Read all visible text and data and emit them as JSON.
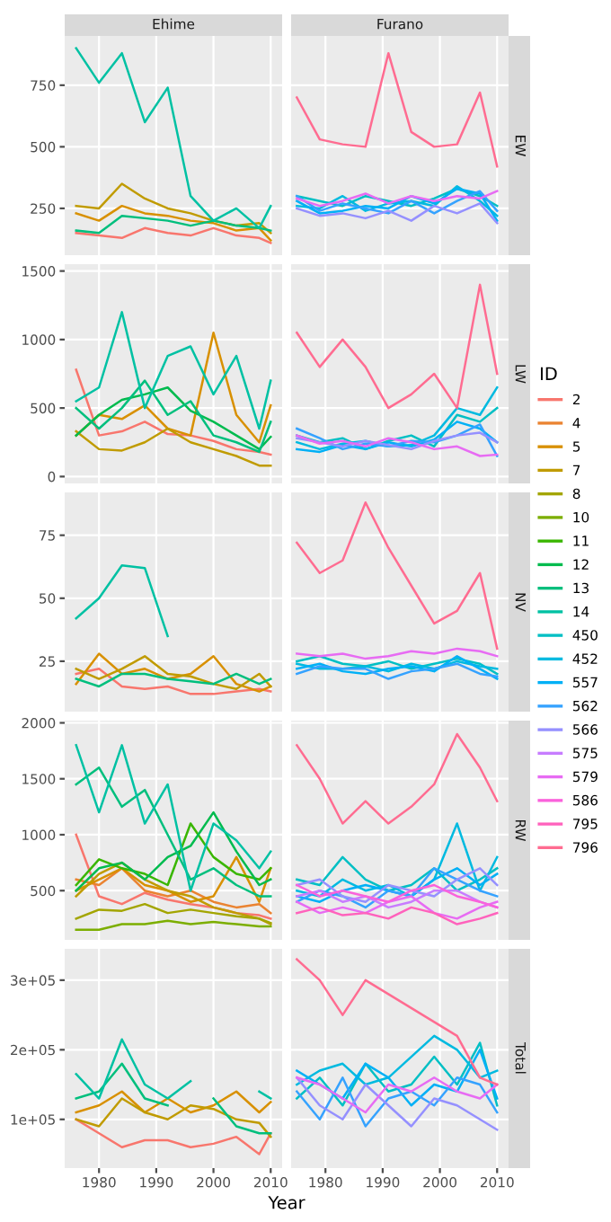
{
  "chart_data": [
    {
      "type": "line",
      "title": "Ehime",
      "x": [
        1976,
        1980,
        1984,
        1988,
        1992,
        1996,
        2000,
        2004,
        2008,
        2010
      ],
      "xlim": [
        1974,
        2012
      ],
      "xticks": [
        1980,
        1990,
        2000,
        2010
      ],
      "ylim": [
        60,
        950
      ],
      "yticks": [
        250,
        500,
        750
      ],
      "tick_labels": "y",
      "grid": true,
      "legend": "right",
      "legend_title": "ID",
      "series": [
        {
          "name": "2",
          "color": "#F8766D",
          "values": [
            150,
            140,
            130,
            170,
            150,
            140,
            170,
            140,
            130,
            110
          ]
        },
        {
          "name": "5",
          "color": "#D89000",
          "values": [
            230,
            200,
            260,
            230,
            220,
            200,
            190,
            160,
            170,
            120
          ]
        },
        {
          "name": "7",
          "color": "#C09B00",
          "values": [
            260,
            250,
            350,
            290,
            250,
            230,
            200,
            180,
            190,
            150
          ]
        },
        {
          "name": "13",
          "color": "#00BF7D",
          "values": [
            160,
            150,
            220,
            210,
            200,
            180,
            200,
            180,
            170,
            160
          ]
        },
        {
          "name": "14",
          "color": "#00C1A3",
          "values": [
            900,
            760,
            880,
            600,
            740,
            300,
            200,
            250,
            170,
            260
          ]
        }
      ]
    },
    {
      "type": "line",
      "title": "Furano",
      "annotations": [
        "EW"
      ],
      "legend": "right",
      "x": [
        1975,
        1979,
        1983,
        1987,
        1991,
        1995,
        1999,
        2003,
        2007,
        2010
      ],
      "xlim": [
        1974,
        2012
      ],
      "xticks": [
        1980,
        1990,
        2000,
        2010
      ],
      "ylim": [
        60,
        950
      ],
      "yticks": [
        250,
        500,
        750
      ],
      "tick_labels": false,
      "grid": true,
      "series": [
        {
          "name": "450",
          "color": "#00BFC4",
          "values": [
            300,
            280,
            260,
            300,
            280,
            260,
            290,
            330,
            300,
            260
          ]
        },
        {
          "name": "452",
          "color": "#00BAE0",
          "values": [
            260,
            250,
            300,
            240,
            270,
            280,
            260,
            340,
            280,
            220
          ]
        },
        {
          "name": "557",
          "color": "#00B0F6",
          "values": [
            280,
            230,
            240,
            260,
            250,
            300,
            270,
            330,
            310,
            200
          ]
        },
        {
          "name": "562",
          "color": "#35A2FF",
          "values": [
            300,
            240,
            270,
            250,
            230,
            280,
            230,
            280,
            320,
            240
          ]
        },
        {
          "name": "566",
          "color": "#9590FF",
          "values": [
            250,
            220,
            230,
            210,
            240,
            200,
            260,
            230,
            270,
            190
          ]
        },
        {
          "name": "579",
          "color": "#E76BF3",
          "values": [
            290,
            260,
            280,
            310,
            270,
            300,
            280,
            300,
            290,
            320
          ]
        },
        {
          "name": "796",
          "color": "#FF6C91",
          "values": [
            700,
            530,
            510,
            500,
            880,
            560,
            500,
            510,
            720,
            420
          ]
        }
      ]
    },
    {
      "type": "line",
      "x": [
        1976,
        1980,
        1984,
        1988,
        1992,
        1996,
        2000,
        2004,
        2008,
        2010
      ],
      "xlim": [
        1974,
        2012
      ],
      "xticks": [
        1980,
        1990,
        2000,
        2010
      ],
      "ylim": [
        -50,
        1550
      ],
      "yticks": [
        0,
        500,
        1000,
        1500
      ],
      "tick_labels": "y",
      "grid": true,
      "series": [
        {
          "name": "2",
          "color": "#F8766D",
          "values": [
            780,
            300,
            330,
            400,
            310,
            300,
            260,
            200,
            180,
            160
          ]
        },
        {
          "name": "5",
          "color": "#D89000",
          "values": [
            300,
            450,
            420,
            520,
            350,
            300,
            1050,
            450,
            250,
            520
          ]
        },
        {
          "name": "7",
          "color": "#C09B00",
          "values": [
            330,
            200,
            190,
            250,
            350,
            250,
            200,
            150,
            80,
            80
          ]
        },
        {
          "name": "12",
          "color": "#00BB4E",
          "values": [
            300,
            450,
            560,
            600,
            650,
            480,
            400,
            300,
            200,
            290
          ]
        },
        {
          "name": "13",
          "color": "#00BF7D",
          "values": [
            500,
            350,
            500,
            700,
            450,
            550,
            300,
            250,
            180,
            400
          ]
        },
        {
          "name": "14",
          "color": "#00C1A3",
          "values": [
            550,
            650,
            1200,
            500,
            880,
            950,
            600,
            880,
            350,
            700
          ]
        }
      ]
    },
    {
      "type": "line",
      "annotations": [
        "LW"
      ],
      "x": [
        1975,
        1979,
        1983,
        1987,
        1991,
        1995,
        1999,
        2003,
        2007,
        2010
      ],
      "xlim": [
        1974,
        2012
      ],
      "xticks": [
        1980,
        1990,
        2000,
        2010
      ],
      "ylim": [
        -50,
        1550
      ],
      "yticks": [
        0,
        500,
        1000,
        1500
      ],
      "tick_labels": false,
      "grid": true,
      "series": [
        {
          "name": "450",
          "color": "#00BFC4",
          "values": [
            300,
            250,
            280,
            200,
            260,
            300,
            220,
            450,
            400,
            500
          ]
        },
        {
          "name": "452",
          "color": "#00BAE0",
          "values": [
            250,
            200,
            240,
            260,
            220,
            230,
            300,
            500,
            450,
            650
          ]
        },
        {
          "name": "557",
          "color": "#00B0F6",
          "values": [
            200,
            180,
            230,
            200,
            250,
            220,
            270,
            400,
            350,
            250
          ]
        },
        {
          "name": "562",
          "color": "#35A2FF",
          "values": [
            350,
            280,
            200,
            240,
            220,
            260,
            250,
            300,
            380,
            150
          ]
        },
        {
          "name": "566",
          "color": "#9590FF",
          "values": [
            280,
            250,
            220,
            260,
            230,
            200,
            260,
            300,
            320,
            250
          ]
        },
        {
          "name": "579",
          "color": "#E76BF3",
          "values": [
            300,
            240,
            260,
            220,
            280,
            250,
            200,
            220,
            150,
            160
          ]
        },
        {
          "name": "796",
          "color": "#FF6C91",
          "values": [
            1050,
            800,
            1000,
            800,
            500,
            600,
            750,
            500,
            1400,
            750
          ]
        }
      ]
    },
    {
      "type": "line",
      "x": [
        1976,
        1980,
        1984,
        1988,
        1992,
        1996,
        2000,
        2004,
        2008,
        2010
      ],
      "xlim": [
        1974,
        2012
      ],
      "xticks": [
        1980,
        1990,
        2000,
        2010
      ],
      "ylim": [
        5,
        92
      ],
      "yticks": [
        25,
        50,
        75
      ],
      "tick_labels": "y",
      "grid": true,
      "series": [
        {
          "name": "2",
          "color": "#F8766D",
          "values": [
            20,
            22,
            15,
            14,
            15,
            12,
            12,
            13,
            14,
            13
          ]
        },
        {
          "name": "5",
          "color": "#D89000",
          "values": [
            16,
            28,
            20,
            22,
            18,
            20,
            27,
            16,
            13,
            15
          ]
        },
        {
          "name": "7",
          "color": "#C09B00",
          "values": [
            22,
            18,
            22,
            27,
            20,
            19,
            16,
            14,
            20,
            15
          ]
        },
        {
          "name": "13",
          "color": "#00BF7D",
          "values": [
            18,
            15,
            20,
            20,
            18,
            17,
            16,
            20,
            16,
            18
          ]
        },
        {
          "name": "14",
          "color": "#00C1A3",
          "values": [
            42,
            50,
            63,
            62,
            35,
            null,
            null,
            null,
            null,
            null
          ]
        }
      ]
    },
    {
      "type": "line",
      "annotations": [
        "NV"
      ],
      "x": [
        1975,
        1979,
        1983,
        1987,
        1991,
        1995,
        1999,
        2003,
        2007,
        2010
      ],
      "xlim": [
        1974,
        2012
      ],
      "xticks": [
        1980,
        1990,
        2000,
        2010
      ],
      "ylim": [
        5,
        92
      ],
      "yticks": [
        25,
        50,
        75
      ],
      "tick_labels": false,
      "grid": true,
      "series": [
        {
          "name": "450",
          "color": "#00BFC4",
          "values": [
            25,
            27,
            24,
            23,
            25,
            22,
            24,
            26,
            24,
            20
          ]
        },
        {
          "name": "452",
          "color": "#00BAE0",
          "values": [
            24,
            22,
            22,
            23,
            21,
            24,
            22,
            25,
            23,
            22
          ]
        },
        {
          "name": "557",
          "color": "#00B0F6",
          "values": [
            22,
            24,
            21,
            20,
            22,
            23,
            21,
            27,
            22,
            18
          ]
        },
        {
          "name": "562",
          "color": "#35A2FF",
          "values": [
            20,
            23,
            22,
            22,
            18,
            21,
            22,
            24,
            20,
            19
          ]
        },
        {
          "name": "579",
          "color": "#E76BF3",
          "values": [
            28,
            27,
            28,
            26,
            27,
            29,
            28,
            30,
            29,
            27
          ]
        },
        {
          "name": "796",
          "color": "#FF6C91",
          "values": [
            72,
            60,
            65,
            88,
            70,
            55,
            40,
            45,
            60,
            30
          ]
        }
      ]
    },
    {
      "type": "line",
      "legend": "right",
      "x": [
        1976,
        1980,
        1984,
        1988,
        1992,
        1996,
        2000,
        2004,
        2008,
        2010
      ],
      "xlim": [
        1974,
        2012
      ],
      "xticks": [
        1980,
        1990,
        2000,
        2010
      ],
      "ylim": [
        60,
        2020
      ],
      "yticks": [
        500,
        1000,
        1500,
        2000
      ],
      "tick_labels": "y",
      "grid": true,
      "series": [
        {
          "name": "2",
          "color": "#F8766D",
          "values": [
            1000,
            450,
            380,
            480,
            420,
            380,
            350,
            300,
            280,
            250
          ]
        },
        {
          "name": "4",
          "color": "#EA8331",
          "values": [
            600,
            550,
            700,
            500,
            450,
            500,
            400,
            350,
            380,
            300
          ]
        },
        {
          "name": "5",
          "color": "#D89000",
          "values": [
            500,
            600,
            700,
            550,
            500,
            400,
            450,
            800,
            400,
            700
          ]
        },
        {
          "name": "7",
          "color": "#C09B00",
          "values": [
            450,
            650,
            750,
            600,
            500,
            450,
            350,
            300,
            250,
            200
          ]
        },
        {
          "name": "8",
          "color": "#A3A500",
          "values": [
            250,
            330,
            320,
            380,
            300,
            330,
            300,
            270,
            250,
            210
          ]
        },
        {
          "name": "10",
          "color": "#7CAE00",
          "values": [
            150,
            150,
            200,
            200,
            230,
            200,
            220,
            200,
            180,
            180
          ]
        },
        {
          "name": "11",
          "color": "#39B600",
          "values": [
            550,
            780,
            700,
            650,
            550,
            1100,
            800,
            650,
            600,
            700
          ]
        },
        {
          "name": "12",
          "color": "#00BB4E",
          "values": [
            500,
            700,
            750,
            600,
            800,
            900,
            1200,
            850,
            550,
            600
          ]
        },
        {
          "name": "13",
          "color": "#00BF7D",
          "values": [
            1450,
            1600,
            1250,
            1400,
            1000,
            600,
            700,
            550,
            450,
            450
          ]
        },
        {
          "name": "14",
          "color": "#00C1A3",
          "values": [
            1800,
            1200,
            1800,
            1100,
            1450,
            500,
            1100,
            950,
            700,
            850
          ]
        }
      ]
    },
    {
      "type": "line",
      "annotations": [
        "RW"
      ],
      "legend": "right",
      "x": [
        1975,
        1979,
        1983,
        1987,
        1991,
        1995,
        1999,
        2003,
        2007,
        2010
      ],
      "xlim": [
        1974,
        2012
      ],
      "xticks": [
        1980,
        1990,
        2000,
        2010
      ],
      "ylim": [
        60,
        2020
      ],
      "yticks": [
        500,
        1000,
        1500,
        2000
      ],
      "tick_labels": false,
      "grid": true,
      "series": [
        {
          "name": "450",
          "color": "#00BFC4",
          "values": [
            600,
            550,
            800,
            600,
            500,
            550,
            700,
            500,
            600,
            700
          ]
        },
        {
          "name": "452",
          "color": "#00BAE0",
          "values": [
            500,
            450,
            600,
            500,
            550,
            450,
            600,
            1100,
            500,
            800
          ]
        },
        {
          "name": "557",
          "color": "#00B0F6",
          "values": [
            450,
            400,
            500,
            550,
            500,
            450,
            600,
            700,
            550,
            650
          ]
        },
        {
          "name": "562",
          "color": "#35A2FF",
          "values": [
            400,
            500,
            450,
            350,
            500,
            450,
            700,
            600,
            500,
            450
          ]
        },
        {
          "name": "566",
          "color": "#9590FF",
          "values": [
            550,
            600,
            450,
            400,
            550,
            500,
            450,
            600,
            700,
            550
          ]
        },
        {
          "name": "575",
          "color": "#C77CFF",
          "values": [
            450,
            500,
            400,
            450,
            350,
            400,
            500,
            500,
            400,
            350
          ]
        },
        {
          "name": "579",
          "color": "#E76BF3",
          "values": [
            400,
            300,
            350,
            300,
            400,
            450,
            300,
            250,
            350,
            400
          ]
        },
        {
          "name": "586",
          "color": "#FA62DB",
          "values": [
            550,
            450,
            500,
            450,
            400,
            500,
            550,
            450,
            400,
            350
          ]
        },
        {
          "name": "795",
          "color": "#FF62BC",
          "values": [
            300,
            350,
            280,
            300,
            250,
            350,
            300,
            200,
            250,
            300
          ]
        },
        {
          "name": "796",
          "color": "#FF6C91",
          "values": [
            1800,
            1500,
            1100,
            1300,
            1100,
            1250,
            1450,
            1900,
            1600,
            1300
          ]
        }
      ]
    },
    {
      "type": "line",
      "x": [
        1976,
        1980,
        1984,
        1988,
        1992,
        1996,
        2000,
        2004,
        2008,
        2010
      ],
      "xlim": [
        1974,
        2012
      ],
      "xticks": [
        1980,
        1990,
        2000,
        2010
      ],
      "ylim": [
        30000,
        345000
      ],
      "yticks": [
        {
          "value": 100000,
          "label": "1e+05"
        },
        {
          "value": 200000,
          "label": "2e+05"
        },
        {
          "value": 300000,
          "label": "3e+05"
        }
      ],
      "grid": true,
      "series": [
        {
          "name": "2",
          "color": "#F8766D",
          "values": [
            100000,
            80000,
            60000,
            70000,
            70000,
            60000,
            65000,
            75000,
            50000,
            80000
          ]
        },
        {
          "name": "5",
          "color": "#D89000",
          "values": [
            110000,
            120000,
            140000,
            110000,
            130000,
            110000,
            120000,
            140000,
            110000,
            125000
          ]
        },
        {
          "name": "7",
          "color": "#C09B00",
          "values": [
            100000,
            90000,
            130000,
            110000,
            100000,
            120000,
            115000,
            100000,
            95000,
            75000
          ]
        },
        {
          "name": "13",
          "color": "#00BF7D",
          "values": [
            130000,
            140000,
            180000,
            130000,
            120000,
            null,
            130000,
            90000,
            80000,
            80000
          ]
        },
        {
          "name": "14",
          "color": "#00C1A3",
          "values": [
            165000,
            130000,
            215000,
            150000,
            130000,
            155000,
            null,
            null,
            140000,
            130000
          ]
        }
      ]
    },
    {
      "type": "line",
      "annotations": [
        "Total"
      ],
      "xlabel": "Year",
      "x": [
        1975,
        1979,
        1983,
        1987,
        1991,
        1995,
        1999,
        2003,
        2007,
        2010
      ],
      "xlim": [
        1974,
        2012
      ],
      "xticks": [
        1980,
        1990,
        2000,
        2010
      ],
      "ylim": [
        30000,
        345000
      ],
      "yticks": [
        {
          "value": 100000,
          "label": null
        },
        {
          "value": 200000,
          "label": null
        },
        {
          "value": 300000,
          "label": null
        }
      ],
      "tick_labels": "x",
      "grid": true,
      "series": [
        {
          "name": "450",
          "color": "#00BFC4",
          "values": [
            130000,
            160000,
            120000,
            180000,
            140000,
            150000,
            190000,
            150000,
            210000,
            120000
          ]
        },
        {
          "name": "452",
          "color": "#00BAE0",
          "values": [
            150000,
            170000,
            180000,
            150000,
            160000,
            190000,
            220000,
            200000,
            160000,
            170000
          ]
        },
        {
          "name": "557",
          "color": "#00B0F6",
          "values": [
            170000,
            150000,
            130000,
            180000,
            160000,
            120000,
            150000,
            140000,
            200000,
            130000
          ]
        },
        {
          "name": "562",
          "color": "#35A2FF",
          "values": [
            140000,
            100000,
            160000,
            90000,
            130000,
            140000,
            120000,
            160000,
            150000,
            110000
          ]
        },
        {
          "name": "566",
          "color": "#9590FF",
          "values": [
            160000,
            120000,
            100000,
            150000,
            120000,
            90000,
            130000,
            120000,
            100000,
            85000
          ]
        },
        {
          "name": "579",
          "color": "#E76BF3",
          "values": [
            160000,
            150000,
            130000,
            110000,
            150000,
            140000,
            160000,
            140000,
            130000,
            150000
          ]
        },
        {
          "name": "796",
          "color": "#FF6C91",
          "values": [
            330000,
            300000,
            250000,
            300000,
            280000,
            260000,
            240000,
            220000,
            160000,
            150000
          ]
        }
      ]
    }
  ]
}
